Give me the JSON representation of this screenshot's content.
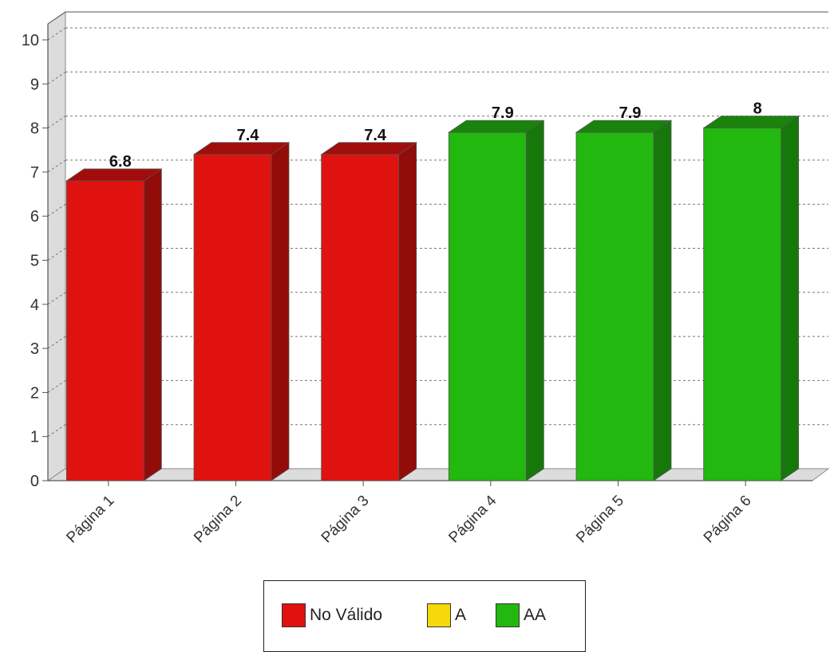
{
  "chart_data": {
    "type": "bar",
    "categories": [
      "Página 1",
      "Página 2",
      "Página 3",
      "Página 4",
      "Página 5",
      "Página 6"
    ],
    "values": [
      6.8,
      7.4,
      7.4,
      7.9,
      7.9,
      8
    ],
    "value_labels": [
      "6.8",
      "7.4",
      "7.4",
      "7.9",
      "7.9",
      "8"
    ],
    "bar_levels": [
      "No Válido",
      "No Válido",
      "No Válido",
      "AA",
      "AA",
      "AA"
    ],
    "ylim": [
      0,
      10
    ],
    "yticks": [
      "0",
      "1",
      "2",
      "3",
      "4",
      "5",
      "6",
      "7",
      "8",
      "9",
      "10"
    ],
    "grid": true,
    "style": "3d",
    "legend": {
      "position": "bottom",
      "items": [
        {
          "label": "No Válido",
          "color": "#e0120f"
        },
        {
          "label": "A",
          "color": "#f5d90a"
        },
        {
          "label": "AA",
          "color": "#22b80f"
        }
      ]
    }
  }
}
